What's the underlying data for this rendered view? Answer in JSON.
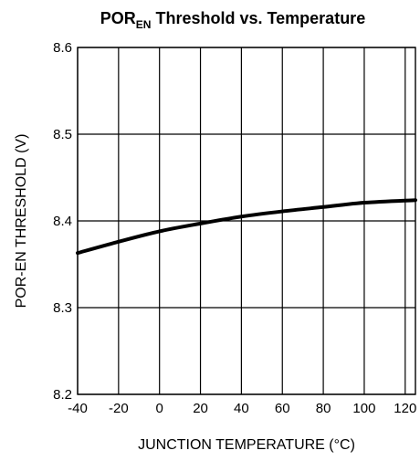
{
  "chart_data": {
    "type": "line",
    "title": {
      "main": "POR",
      "subscript": "EN",
      "rest": " Threshold vs. Temperature"
    },
    "xlabel": "JUNCTION TEMPERATURE (°C)",
    "ylabel": "POR-EN THRESHOLD (V)",
    "xlim": [
      -40,
      125
    ],
    "ylim": [
      8.2,
      8.6
    ],
    "x_ticks": [
      -40,
      -20,
      0,
      20,
      40,
      60,
      80,
      100,
      120
    ],
    "x_tick_labels": [
      "-40",
      "-20",
      "0",
      "20",
      "40",
      "60",
      "80",
      "100",
      "120"
    ],
    "y_ticks": [
      8.2,
      8.3,
      8.4,
      8.5,
      8.6
    ],
    "y_tick_labels": [
      "8.2",
      "8.3",
      "8.4",
      "8.5",
      "8.6"
    ],
    "grid": true,
    "series": [
      {
        "x": [
          -40,
          -20,
          0,
          20,
          40,
          60,
          80,
          100,
          125
        ],
        "y": [
          8.363,
          8.376,
          8.388,
          8.397,
          8.405,
          8.411,
          8.416,
          8.421,
          8.424
        ]
      }
    ]
  }
}
